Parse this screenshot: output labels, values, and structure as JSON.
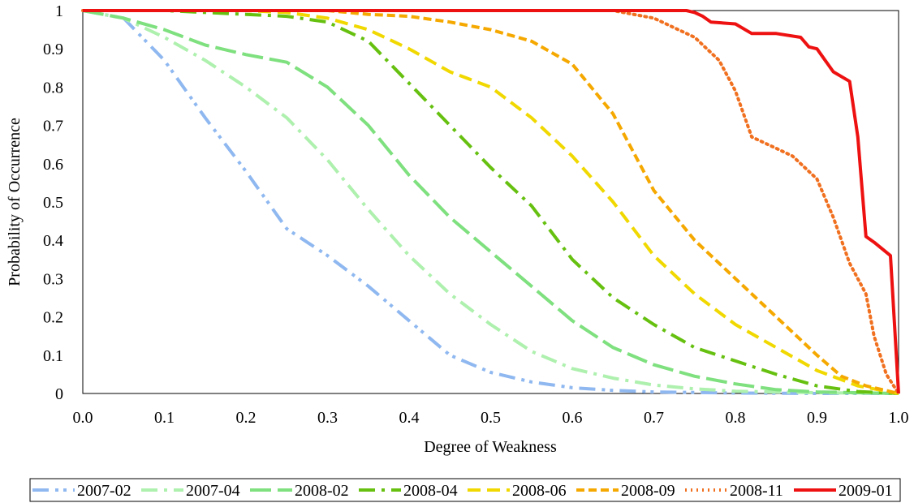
{
  "chart_data": {
    "type": "line",
    "title": "",
    "xlabel": "Degree of Weakness",
    "ylabel": "Probability of Occurrence",
    "xlim": [
      0,
      1
    ],
    "ylim": [
      0,
      1
    ],
    "x_ticks": [
      "0.0",
      "0.1",
      "0.2",
      "0.3",
      "0.4",
      "0.5",
      "0.6",
      "0.7",
      "0.8",
      "0.9",
      "1.0"
    ],
    "y_ticks": [
      "0",
      "0.1",
      "0.2",
      "0.3",
      "0.4",
      "0.5",
      "0.6",
      "0.7",
      "0.8",
      "0.9",
      "1"
    ],
    "grid": false,
    "legend_position": "bottom",
    "series": [
      {
        "name": "2007-02",
        "color": "#8fb8f0",
        "dash": "dashdotdot",
        "points": [
          [
            0,
            1
          ],
          [
            0.05,
            0.98
          ],
          [
            0.1,
            0.87
          ],
          [
            0.15,
            0.72
          ],
          [
            0.2,
            0.58
          ],
          [
            0.25,
            0.43
          ],
          [
            0.3,
            0.36
          ],
          [
            0.35,
            0.28
          ],
          [
            0.4,
            0.19
          ],
          [
            0.45,
            0.1
          ],
          [
            0.5,
            0.055
          ],
          [
            0.55,
            0.03
          ],
          [
            0.6,
            0.015
          ],
          [
            0.65,
            0.008
          ],
          [
            0.7,
            0.004
          ],
          [
            0.8,
            0.001
          ],
          [
            0.9,
            0
          ],
          [
            1,
            0
          ]
        ]
      },
      {
        "name": "2007-04",
        "color": "#aef0ae",
        "dash": "dashdot",
        "points": [
          [
            0,
            1
          ],
          [
            0.05,
            0.98
          ],
          [
            0.1,
            0.93
          ],
          [
            0.15,
            0.87
          ],
          [
            0.2,
            0.8
          ],
          [
            0.25,
            0.72
          ],
          [
            0.3,
            0.61
          ],
          [
            0.35,
            0.48
          ],
          [
            0.4,
            0.36
          ],
          [
            0.45,
            0.26
          ],
          [
            0.5,
            0.18
          ],
          [
            0.55,
            0.11
          ],
          [
            0.6,
            0.065
          ],
          [
            0.65,
            0.04
          ],
          [
            0.7,
            0.022
          ],
          [
            0.75,
            0.012
          ],
          [
            0.8,
            0.006
          ],
          [
            0.9,
            0.002
          ],
          [
            1,
            0
          ]
        ]
      },
      {
        "name": "2008-02",
        "color": "#7ee07e",
        "dash": "longdash",
        "points": [
          [
            0,
            1
          ],
          [
            0.05,
            0.98
          ],
          [
            0.1,
            0.95
          ],
          [
            0.15,
            0.91
          ],
          [
            0.2,
            0.885
          ],
          [
            0.25,
            0.865
          ],
          [
            0.3,
            0.8
          ],
          [
            0.35,
            0.7
          ],
          [
            0.4,
            0.57
          ],
          [
            0.45,
            0.46
          ],
          [
            0.5,
            0.37
          ],
          [
            0.55,
            0.28
          ],
          [
            0.6,
            0.19
          ],
          [
            0.65,
            0.12
          ],
          [
            0.7,
            0.075
          ],
          [
            0.75,
            0.045
          ],
          [
            0.8,
            0.025
          ],
          [
            0.85,
            0.01
          ],
          [
            0.9,
            0.004
          ],
          [
            1,
            0
          ]
        ]
      },
      {
        "name": "2008-04",
        "color": "#66c010",
        "dash": "dashdot",
        "points": [
          [
            0,
            1
          ],
          [
            0.1,
            1
          ],
          [
            0.2,
            0.99
          ],
          [
            0.25,
            0.985
          ],
          [
            0.3,
            0.97
          ],
          [
            0.35,
            0.92
          ],
          [
            0.4,
            0.81
          ],
          [
            0.45,
            0.7
          ],
          [
            0.5,
            0.59
          ],
          [
            0.55,
            0.49
          ],
          [
            0.6,
            0.35
          ],
          [
            0.65,
            0.25
          ],
          [
            0.7,
            0.18
          ],
          [
            0.75,
            0.12
          ],
          [
            0.8,
            0.085
          ],
          [
            0.85,
            0.05
          ],
          [
            0.9,
            0.02
          ],
          [
            0.95,
            0.005
          ],
          [
            1,
            0
          ]
        ]
      },
      {
        "name": "2008-06",
        "color": "#f0d800",
        "dash": "dash",
        "points": [
          [
            0,
            1
          ],
          [
            0.2,
            1
          ],
          [
            0.25,
            0.995
          ],
          [
            0.3,
            0.98
          ],
          [
            0.35,
            0.95
          ],
          [
            0.4,
            0.9
          ],
          [
            0.45,
            0.84
          ],
          [
            0.5,
            0.8
          ],
          [
            0.55,
            0.72
          ],
          [
            0.6,
            0.62
          ],
          [
            0.65,
            0.5
          ],
          [
            0.7,
            0.36
          ],
          [
            0.75,
            0.26
          ],
          [
            0.8,
            0.18
          ],
          [
            0.85,
            0.12
          ],
          [
            0.9,
            0.06
          ],
          [
            0.95,
            0.02
          ],
          [
            1,
            0
          ]
        ]
      },
      {
        "name": "2008-09",
        "color": "#f5a800",
        "dash": "shortdash",
        "points": [
          [
            0,
            1
          ],
          [
            0.3,
            1
          ],
          [
            0.35,
            0.99
          ],
          [
            0.4,
            0.985
          ],
          [
            0.45,
            0.97
          ],
          [
            0.5,
            0.95
          ],
          [
            0.55,
            0.92
          ],
          [
            0.6,
            0.86
          ],
          [
            0.65,
            0.73
          ],
          [
            0.7,
            0.53
          ],
          [
            0.75,
            0.4
          ],
          [
            0.8,
            0.3
          ],
          [
            0.85,
            0.2
          ],
          [
            0.9,
            0.1
          ],
          [
            0.93,
            0.045
          ],
          [
            0.96,
            0.02
          ],
          [
            1,
            0
          ]
        ]
      },
      {
        "name": "2008-11",
        "color": "#f07020",
        "dash": "dot",
        "points": [
          [
            0,
            1
          ],
          [
            0.65,
            1
          ],
          [
            0.7,
            0.98
          ],
          [
            0.75,
            0.93
          ],
          [
            0.78,
            0.87
          ],
          [
            0.8,
            0.79
          ],
          [
            0.82,
            0.67
          ],
          [
            0.85,
            0.64
          ],
          [
            0.87,
            0.62
          ],
          [
            0.9,
            0.56
          ],
          [
            0.92,
            0.46
          ],
          [
            0.94,
            0.34
          ],
          [
            0.96,
            0.26
          ],
          [
            0.97,
            0.15
          ],
          [
            0.985,
            0.05
          ],
          [
            1,
            0
          ]
        ]
      },
      {
        "name": "2009-01",
        "color": "#ee1111",
        "dash": "solid",
        "points": [
          [
            0,
            1
          ],
          [
            0.74,
            1
          ],
          [
            0.75,
            0.995
          ],
          [
            0.76,
            0.985
          ],
          [
            0.77,
            0.97
          ],
          [
            0.8,
            0.965
          ],
          [
            0.82,
            0.94
          ],
          [
            0.85,
            0.94
          ],
          [
            0.88,
            0.93
          ],
          [
            0.89,
            0.905
          ],
          [
            0.9,
            0.9
          ],
          [
            0.92,
            0.84
          ],
          [
            0.94,
            0.815
          ],
          [
            0.95,
            0.67
          ],
          [
            0.96,
            0.41
          ],
          [
            0.97,
            0.395
          ],
          [
            0.99,
            0.36
          ],
          [
            1,
            0
          ]
        ]
      }
    ]
  }
}
